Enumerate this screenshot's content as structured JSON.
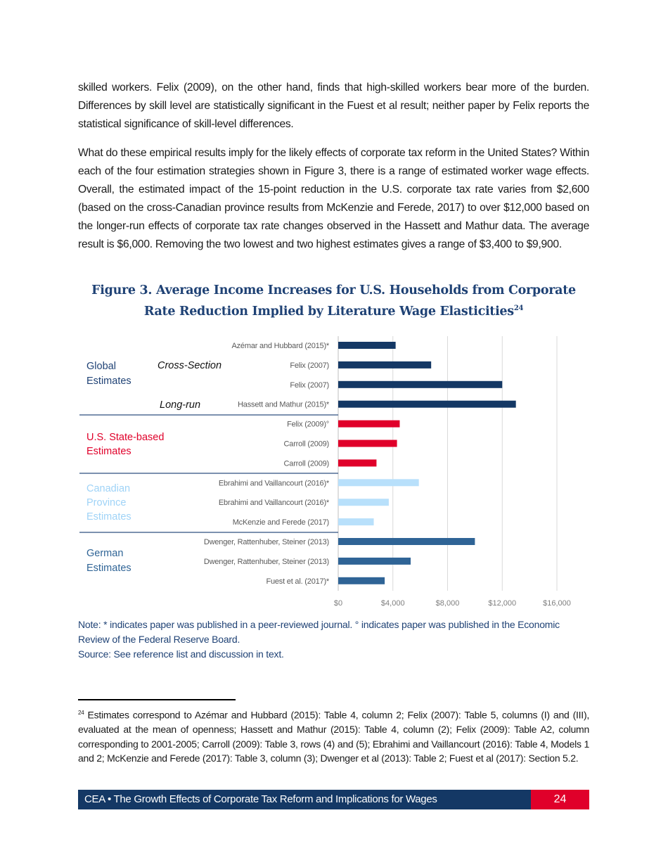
{
  "body": {
    "paragraphs": [
      "skilled workers. Felix (2009), on the other hand, finds that high-skilled workers bear more of the burden. Differences by skill level are statistically significant in the Fuest et al result; neither paper by Felix reports the statistical significance of skill-level differences.",
      "What do these empirical results imply for the likely effects of corporate tax reform in the United States? Within each of the four estimation strategies shown in Figure 3, there is a range of estimated worker wage effects. Overall, the estimated impact of the 15-point reduction in the U.S. corporate tax rate varies from $2,600 (based on the cross-Canadian province results from McKenzie and Ferede, 2017) to over $12,000 based on the longer-run effects of corporate tax rate changes observed in the Hassett and Mathur data. The average result is $6,000. Removing the two lowest and two highest estimates gives a range of $3,400 to $9,900."
    ]
  },
  "figure": {
    "title": "Figure 3. Average Income Increases for U.S. Households from Corporate Rate Reduction Implied by Literature Wage Elasticities",
    "title_footnote_ref": "24",
    "note": "Note: * indicates paper was published in a peer-reviewed journal. ° indicates paper was published in the Economic Review of the Federal Reserve Board.",
    "source": "Source: See reference list and discussion in text."
  },
  "chart_data": {
    "type": "bar",
    "orientation": "horizontal",
    "xlim": [
      0,
      16000
    ],
    "x_ticks": [
      "$0",
      "$4,000",
      "$8,000",
      "$12,000",
      "$16,000"
    ],
    "x_tick_values": [
      0,
      4000,
      8000,
      12000,
      16000
    ],
    "grid": "vertical",
    "groups": [
      {
        "label": "Global Estimates",
        "color": "#143865",
        "sublabels": [
          "Cross-Section",
          "Long-run"
        ]
      },
      {
        "label": "U.S. State-based Estimates",
        "color": "#e0002a"
      },
      {
        "label": "Canadian Province Estimates",
        "color": "#b8e0fb"
      },
      {
        "label": "German Estimates",
        "color": "#2f6496"
      }
    ],
    "categories": [
      "Azémar and Hubbard (2015)*",
      "Felix (2007)",
      "Felix (2007)",
      "Hassett and Mathur (2015)*",
      "Felix (2009)°",
      "Carroll (2009)",
      "Carroll (2009)",
      "Ebrahimi and Vaillancourt (2016)*",
      "Ebrahimi and Vaillancourt (2016)*",
      "McKenzie and Ferede (2017)",
      "Dwenger, Rattenhuber, Steiner (2013)",
      "Dwenger, Rattenhuber, Steiner (2013)",
      "Fuest et al. (2017)*"
    ],
    "group_index": [
      0,
      0,
      0,
      0,
      1,
      1,
      1,
      2,
      2,
      2,
      3,
      3,
      3
    ],
    "values": [
      4200,
      6800,
      12000,
      13000,
      4500,
      4300,
      2800,
      5900,
      3700,
      2600,
      10000,
      5300,
      3400
    ]
  },
  "footnote": {
    "number": "24",
    "text": "Estimates correspond to Azémar and Hubbard (2015): Table 4, column 2; Felix (2007): Table 5, columns (I) and (III), evaluated at the mean of openness; Hassett and Mathur (2015): Table 4, column (2); Felix (2009): Table A2, column corresponding to 2001-2005; Carroll (2009): Table 3, rows (4) and (5); Ebrahimi and Vaillancourt (2016): Table 4, Models 1 and 2; McKenzie and Ferede (2017): Table 3, column (3); Dwenger et al (2013): Table 2; Fuest et al (2017): Section 5.2."
  },
  "footer": {
    "title": "CEA • The Growth Effects of Corporate Tax Reform and Implications for Wages",
    "page_number": "24"
  }
}
